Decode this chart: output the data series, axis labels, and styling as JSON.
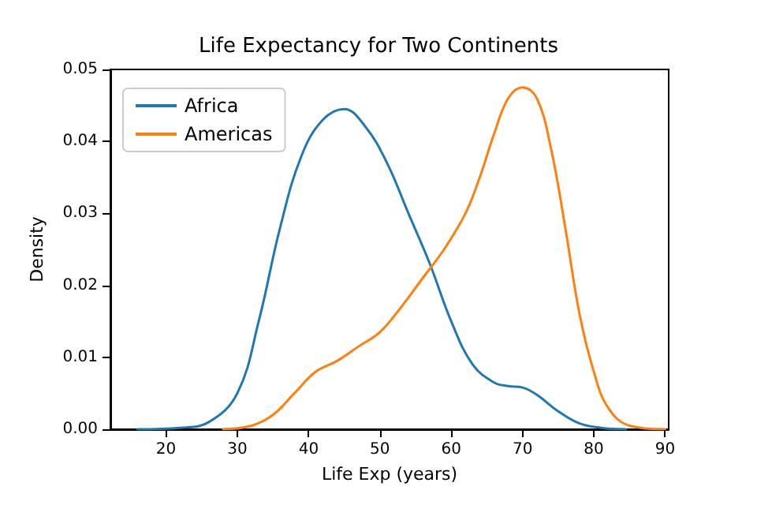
{
  "chart_data": {
    "type": "line",
    "title": "Life Expectancy for Two Continents",
    "xlabel": "Life Exp (years)",
    "ylabel": "Density",
    "series": [
      {
        "name": "Africa",
        "color": "#1f77b4",
        "x": [
          16,
          22,
          26,
          30,
          33,
          36,
          39,
          42,
          45,
          48,
          51,
          54,
          57,
          60,
          63,
          66,
          68,
          70,
          72,
          75,
          78,
          81,
          84.5
        ],
        "values": [
          0,
          0.0002,
          0.001,
          0.005,
          0.015,
          0.028,
          0.038,
          0.043,
          0.0445,
          0.042,
          0.037,
          0.03,
          0.023,
          0.015,
          0.009,
          0.0065,
          0.006,
          0.0058,
          0.0048,
          0.0025,
          0.0008,
          0.0002,
          0
        ]
      },
      {
        "name": "Americas",
        "color": "#ff7f0e",
        "x": [
          28,
          32,
          35,
          38,
          41,
          44,
          47,
          50,
          53,
          56,
          59,
          62,
          64,
          66,
          68,
          70,
          72,
          74,
          76,
          78,
          80,
          82,
          85,
          90
        ],
        "values": [
          0,
          0.0005,
          0.002,
          0.005,
          0.008,
          0.0095,
          0.0115,
          0.0135,
          0.017,
          0.021,
          0.025,
          0.03,
          0.035,
          0.041,
          0.046,
          0.0475,
          0.046,
          0.039,
          0.028,
          0.016,
          0.008,
          0.003,
          0.0005,
          0
        ]
      }
    ],
    "xlim": [
      12.2,
      90.5
    ],
    "xticks": [
      20,
      30,
      40,
      50,
      60,
      70,
      80,
      90
    ],
    "ylim": [
      0,
      0.05
    ],
    "yticks": [
      {
        "value": 0,
        "label": "0.00"
      },
      0.01,
      0.02,
      0.03,
      0.04,
      0.05
    ],
    "grid": false,
    "legend": "top left",
    "marker": "none",
    "line_style": "solid"
  }
}
